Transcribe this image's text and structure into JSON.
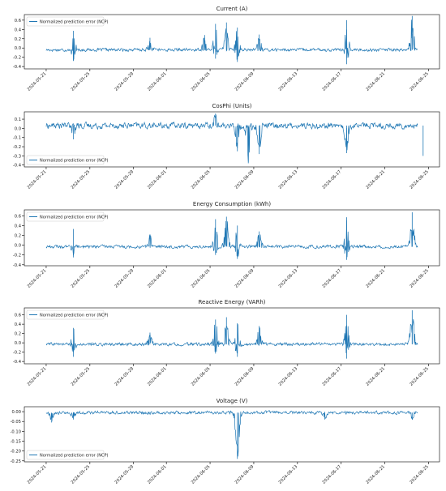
{
  "figure": {
    "line_color": "#1f77b4",
    "x_tick_labels": [
      "2024-05-21",
      "2024-05-25",
      "2024-05-29",
      "2024-06-01",
      "2024-06-05",
      "2024-06-09",
      "2024-06-13",
      "2024-06-17",
      "2024-06-21",
      "2024-06-25"
    ]
  },
  "chart_data": [
    {
      "type": "line",
      "title": "Current (A)",
      "legend": "top-left",
      "series": [
        {
          "name": "Normalized prediction error (NCP)",
          "color": "#1f77b4"
        }
      ],
      "ylim": [
        -0.45,
        0.72
      ],
      "yticks": [
        "-0.4",
        "-0.2",
        "0.0",
        "0.2",
        "0.4",
        "0.6"
      ],
      "ytick_values": [
        -0.4,
        -0.2,
        0.0,
        0.2,
        0.4,
        0.6
      ],
      "x_range": [
        "2024-05-21",
        "2024-06-24"
      ],
      "baseline": -0.04,
      "noise": 0.05,
      "events": [
        {
          "x": "2024-05-23",
          "y": 0.37
        },
        {
          "x": "2024-05-23",
          "y": -0.28
        },
        {
          "x": "2024-05-30",
          "y": 0.22
        },
        {
          "x": "2024-06-04",
          "y": 0.28
        },
        {
          "x": "2024-06-05",
          "y": 0.52
        },
        {
          "x": "2024-06-05",
          "y": -0.23
        },
        {
          "x": "2024-06-06",
          "y": 0.55
        },
        {
          "x": "2024-06-07",
          "y": 0.44
        },
        {
          "x": "2024-06-07",
          "y": -0.3
        },
        {
          "x": "2024-06-09",
          "y": 0.29
        },
        {
          "x": "2024-06-17",
          "y": 0.6
        },
        {
          "x": "2024-06-17",
          "y": -0.35
        },
        {
          "x": "2024-06-23",
          "y": 0.69
        },
        {
          "x": "2024-06-23",
          "y": 0.3
        }
      ]
    },
    {
      "type": "line",
      "title": "CosPhi (Units)",
      "legend": "bottom-left",
      "series": [
        {
          "name": "Normalized prediction error (NCP)",
          "color": "#1f77b4"
        }
      ],
      "ylim": [
        -0.42,
        0.18
      ],
      "yticks": [
        "-0.4",
        "-0.3",
        "-0.2",
        "-0.1",
        "0.0",
        "0.1"
      ],
      "ytick_values": [
        -0.4,
        -0.3,
        -0.2,
        -0.1,
        0.0,
        0.1
      ],
      "x_range": [
        "2024-05-21",
        "2024-06-24"
      ],
      "baseline": 0.03,
      "noise": 0.05,
      "events": [
        {
          "x": "2024-05-23",
          "y": -0.12
        },
        {
          "x": "2024-06-05",
          "y": 0.16
        },
        {
          "x": "2024-06-07",
          "y": -0.25
        },
        {
          "x": "2024-06-08",
          "y": -0.38
        },
        {
          "x": "2024-06-09",
          "y": -0.28
        },
        {
          "x": "2024-06-17",
          "y": -0.27
        },
        {
          "x": "2024-06-24",
          "y": -0.3
        }
      ]
    },
    {
      "type": "line",
      "title": "Energy Consumption (kWh)",
      "legend": "top-left",
      "series": [
        {
          "name": "Normalized prediction error (NCP)",
          "color": "#1f77b4"
        }
      ],
      "ylim": [
        -0.42,
        0.72
      ],
      "yticks": [
        "-0.4",
        "-0.2",
        "0.0",
        "0.2",
        "0.4",
        "0.6"
      ],
      "ytick_values": [
        -0.4,
        -0.2,
        0.0,
        0.2,
        0.4,
        0.6
      ],
      "x_range": [
        "2024-05-21",
        "2024-06-24"
      ],
      "baseline": -0.03,
      "noise": 0.05,
      "events": [
        {
          "x": "2024-05-23",
          "y": 0.33
        },
        {
          "x": "2024-05-23",
          "y": -0.25
        },
        {
          "x": "2024-05-30",
          "y": 0.22
        },
        {
          "x": "2024-06-05",
          "y": 0.53
        },
        {
          "x": "2024-06-05",
          "y": -0.2
        },
        {
          "x": "2024-06-06",
          "y": 0.58
        },
        {
          "x": "2024-06-07",
          "y": 0.4
        },
        {
          "x": "2024-06-07",
          "y": -0.28
        },
        {
          "x": "2024-06-09",
          "y": 0.28
        },
        {
          "x": "2024-06-17",
          "y": 0.57
        },
        {
          "x": "2024-06-17",
          "y": -0.3
        },
        {
          "x": "2024-06-23",
          "y": 0.67
        },
        {
          "x": "2024-06-23",
          "y": 0.28
        }
      ]
    },
    {
      "type": "line",
      "title": "Reactive Energy (VARh)",
      "legend": "top-left",
      "series": [
        {
          "name": "Normalized prediction error (NCP)",
          "color": "#1f77b4"
        }
      ],
      "ylim": [
        -0.45,
        0.75
      ],
      "yticks": [
        "-0.4",
        "-0.2",
        "0.0",
        "0.2",
        "0.4",
        "0.6"
      ],
      "ytick_values": [
        -0.4,
        -0.2,
        0.0,
        0.2,
        0.4,
        0.6
      ],
      "x_range": [
        "2024-05-21",
        "2024-06-24"
      ],
      "baseline": -0.03,
      "noise": 0.05,
      "events": [
        {
          "x": "2024-05-23",
          "y": 0.32
        },
        {
          "x": "2024-05-23",
          "y": -0.3
        },
        {
          "x": "2024-05-30",
          "y": 0.22
        },
        {
          "x": "2024-06-05",
          "y": 0.5
        },
        {
          "x": "2024-06-05",
          "y": -0.23
        },
        {
          "x": "2024-06-06",
          "y": 0.55
        },
        {
          "x": "2024-06-07",
          "y": 0.42
        },
        {
          "x": "2024-06-07",
          "y": -0.3
        },
        {
          "x": "2024-06-09",
          "y": 0.36
        },
        {
          "x": "2024-06-17",
          "y": 0.6
        },
        {
          "x": "2024-06-17",
          "y": -0.34
        },
        {
          "x": "2024-06-23",
          "y": 0.7
        },
        {
          "x": "2024-06-23",
          "y": 0.35
        }
      ]
    },
    {
      "type": "line",
      "title": "Voltage (V)",
      "legend": "bottom-left",
      "series": [
        {
          "name": "Normalized prediction error (NCP)",
          "color": "#1f77b4"
        }
      ],
      "ylim": [
        -0.255,
        0.025
      ],
      "yticks": [
        "-0.25",
        "-0.20",
        "-0.15",
        "-0.10",
        "-0.05",
        "0.00"
      ],
      "ytick_values": [
        -0.25,
        -0.2,
        -0.15,
        -0.1,
        -0.05,
        0.0
      ],
      "x_range": [
        "2024-05-21",
        "2024-06-24"
      ],
      "baseline": -0.005,
      "noise": 0.012,
      "events": [
        {
          "x": "2024-05-21",
          "y": -0.055
        },
        {
          "x": "2024-05-23",
          "y": -0.04
        },
        {
          "x": "2024-06-07",
          "y": -0.24
        },
        {
          "x": "2024-06-15",
          "y": -0.04
        },
        {
          "x": "2024-06-23",
          "y": -0.04
        }
      ]
    }
  ]
}
